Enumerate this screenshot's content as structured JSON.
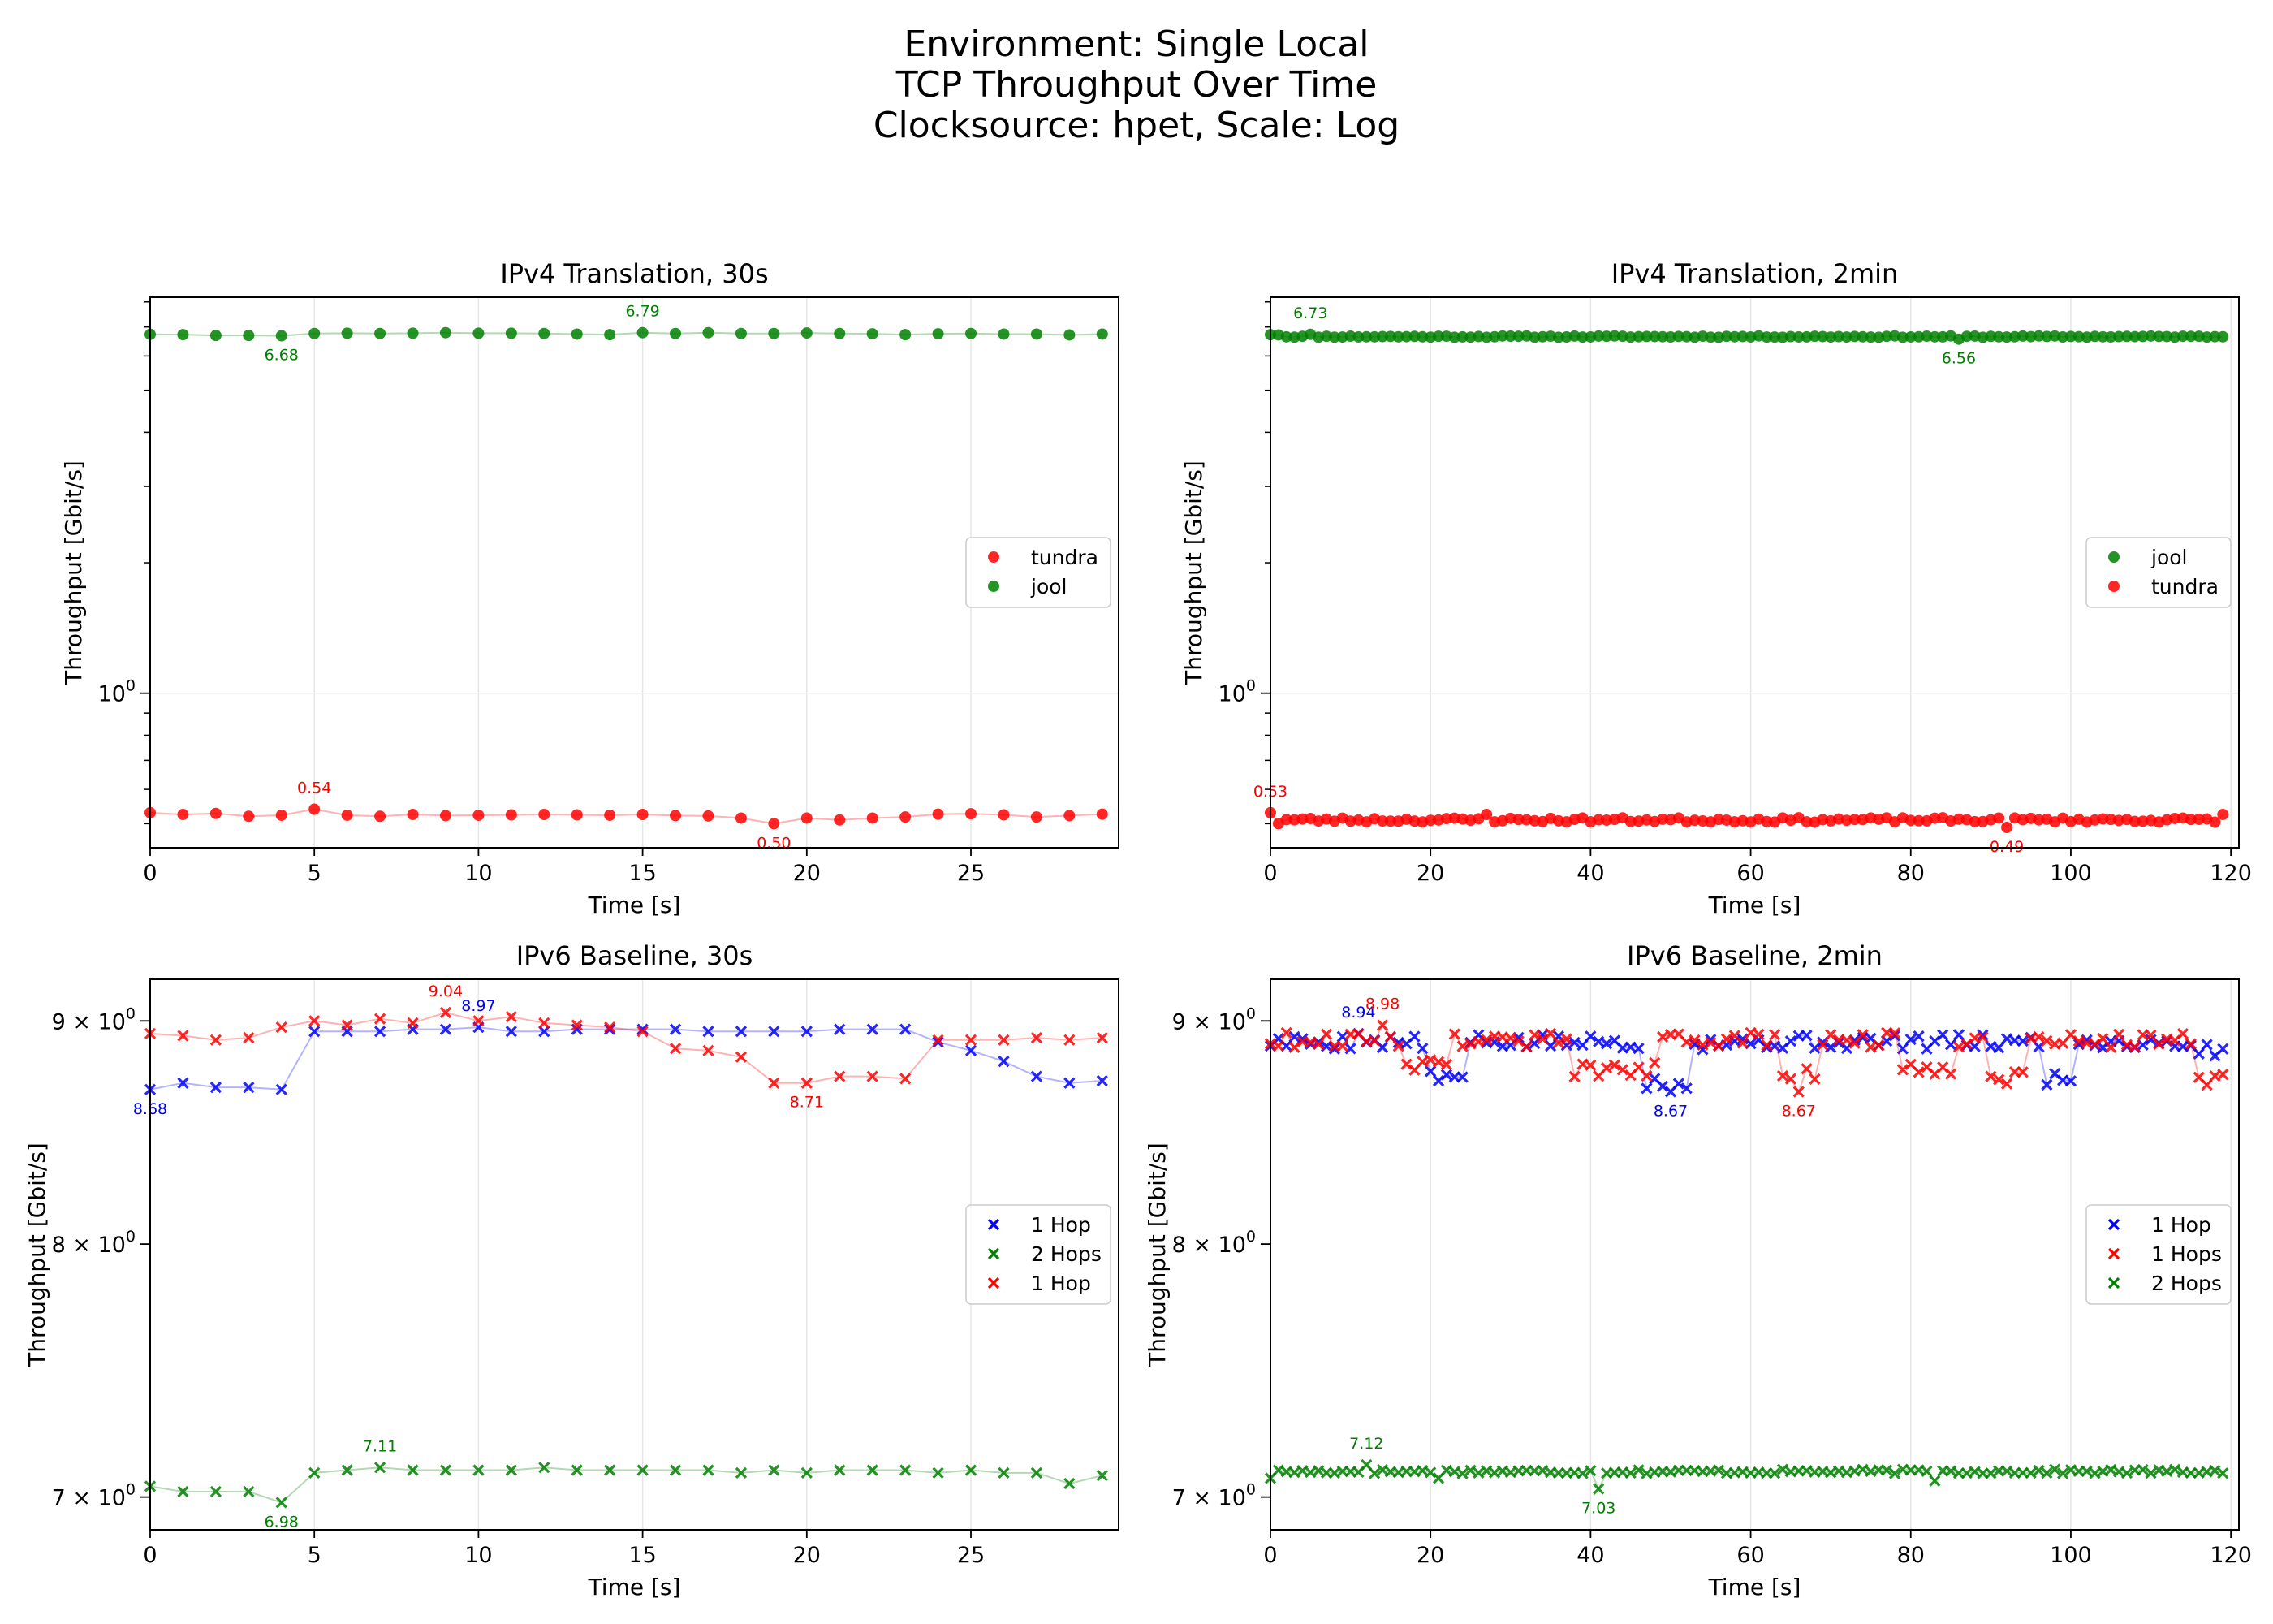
{
  "suptitle": [
    "Environment: Single Local",
    "TCP Throughput Over Time",
    "Clocksource: hpet, Scale: Log"
  ],
  "colors": {
    "tundra": "#ff0000",
    "jool": "#008000",
    "hop1_blue": "#0000ff",
    "hop1_red": "#ff0000",
    "hops2": "#008000"
  },
  "chart_data": [
    {
      "type": "scatter",
      "title": "IPv4 Translation, 30s",
      "xlabel": "Time [s]",
      "ylabel": "Throughput [Gbit/s]",
      "yscale": "log",
      "marker": "o",
      "xlim": [
        0,
        29.5
      ],
      "ylim": [
        0.44,
        8.2
      ],
      "xticks": [
        0,
        5,
        10,
        15,
        20,
        25
      ],
      "yticks": [
        {
          "value": 1,
          "label": "10^0"
        }
      ],
      "grid": "vertical + major y",
      "legend": "center-right",
      "series": [
        {
          "name": "tundra",
          "color": "#ff0000",
          "x": [
            0,
            1,
            2,
            3,
            4,
            5,
            6,
            7,
            8,
            9,
            10,
            11,
            12,
            13,
            14,
            15,
            16,
            17,
            18,
            19,
            20,
            21,
            22,
            23,
            24,
            25,
            26,
            27,
            28,
            29
          ],
          "values": [
            0.53,
            0.525,
            0.528,
            0.52,
            0.523,
            0.54,
            0.523,
            0.52,
            0.525,
            0.522,
            0.523,
            0.524,
            0.525,
            0.524,
            0.523,
            0.525,
            0.522,
            0.521,
            0.515,
            0.5,
            0.515,
            0.51,
            0.515,
            0.518,
            0.526,
            0.527,
            0.524,
            0.518,
            0.522,
            0.526
          ]
        },
        {
          "name": "jool",
          "color": "#008000",
          "x": [
            0,
            1,
            2,
            3,
            4,
            5,
            6,
            7,
            8,
            9,
            10,
            11,
            12,
            13,
            14,
            15,
            16,
            17,
            18,
            19,
            20,
            21,
            22,
            23,
            24,
            25,
            26,
            27,
            28,
            29
          ],
          "values": [
            6.73,
            6.72,
            6.69,
            6.69,
            6.68,
            6.76,
            6.77,
            6.76,
            6.77,
            6.79,
            6.77,
            6.77,
            6.76,
            6.74,
            6.72,
            6.79,
            6.76,
            6.79,
            6.76,
            6.76,
            6.78,
            6.76,
            6.75,
            6.72,
            6.75,
            6.76,
            6.74,
            6.74,
            6.71,
            6.74
          ]
        }
      ],
      "annotations": [
        {
          "x": 4,
          "y": 6.68,
          "text": "6.68",
          "pos": "below",
          "color": "#008000"
        },
        {
          "x": 15,
          "y": 6.79,
          "text": "6.79",
          "pos": "above",
          "color": "#008000"
        },
        {
          "x": 5,
          "y": 0.54,
          "text": "0.54",
          "pos": "above",
          "color": "#ff0000"
        },
        {
          "x": 19,
          "y": 0.5,
          "text": "0.50",
          "pos": "below",
          "color": "#ff0000"
        }
      ]
    },
    {
      "type": "scatter",
      "title": "IPv4 Translation, 2min",
      "xlabel": "Time [s]",
      "ylabel": "Throughput [Gbit/s]",
      "yscale": "log",
      "marker": "o",
      "xlim": [
        0,
        121
      ],
      "ylim": [
        0.44,
        8.2
      ],
      "xticks": [
        0,
        20,
        40,
        60,
        80,
        100,
        120
      ],
      "yticks": [
        {
          "value": 1,
          "label": "10^0"
        }
      ],
      "grid": "vertical + major y",
      "legend": "center-right",
      "series": [
        {
          "name": "jool",
          "color": "#008000",
          "generator": {
            "count": 120,
            "base": 6.65,
            "noise": 0.025,
            "seed": 11
          },
          "overrides": [
            {
              "x": 0,
              "y": 6.72
            },
            {
              "x": 1,
              "y": 6.71
            },
            {
              "x": 5,
              "y": 6.73
            },
            {
              "x": 86,
              "y": 6.56
            }
          ]
        },
        {
          "name": "tundra",
          "color": "#ff0000",
          "generator": {
            "count": 120,
            "base": 0.51,
            "noise": 0.006,
            "seed": 23
          },
          "overrides": [
            {
              "x": 0,
              "y": 0.53
            },
            {
              "x": 1,
              "y": 0.5
            },
            {
              "x": 27,
              "y": 0.525
            },
            {
              "x": 92,
              "y": 0.49
            },
            {
              "x": 119,
              "y": 0.525
            }
          ]
        }
      ],
      "annotations": [
        {
          "x": 5,
          "y": 6.73,
          "text": "6.73",
          "pos": "above",
          "color": "#008000"
        },
        {
          "x": 86,
          "y": 6.56,
          "text": "6.56",
          "pos": "below",
          "color": "#008000"
        },
        {
          "x": 0,
          "y": 0.53,
          "text": "0.53",
          "pos": "above",
          "color": "#ff0000"
        },
        {
          "x": 92,
          "y": 0.49,
          "text": "0.49",
          "pos": "below",
          "color": "#ff0000"
        }
      ]
    },
    {
      "type": "scatter",
      "title": "IPv6 Baseline, 30s",
      "xlabel": "Time [s]",
      "ylabel": "Throughput [Gbit/s]",
      "yscale": "log",
      "marker": "x",
      "xlim": [
        0,
        29.5
      ],
      "ylim": [
        6.88,
        9.2
      ],
      "xticks": [
        0,
        5,
        10,
        15,
        20,
        25
      ],
      "yticks": [
        {
          "value": 9,
          "label": "9 × 10^0"
        },
        {
          "value": 8,
          "label": "8 × 10^0"
        },
        {
          "value": 7,
          "label": "7 × 10^0"
        }
      ],
      "grid": "vertical",
      "legend": "center-right",
      "series": [
        {
          "name": "1 Hop",
          "color": "#0000ff",
          "x": [
            0,
            1,
            2,
            3,
            4,
            5,
            6,
            7,
            8,
            9,
            10,
            11,
            12,
            13,
            14,
            15,
            16,
            17,
            18,
            19,
            20,
            21,
            22,
            23,
            24,
            25,
            26,
            27,
            28,
            29
          ],
          "values": [
            8.68,
            8.71,
            8.69,
            8.69,
            8.68,
            8.95,
            8.95,
            8.95,
            8.96,
            8.96,
            8.97,
            8.95,
            8.95,
            8.96,
            8.96,
            8.96,
            8.96,
            8.95,
            8.95,
            8.95,
            8.95,
            8.96,
            8.96,
            8.96,
            8.9,
            8.86,
            8.81,
            8.74,
            8.71,
            8.72
          ]
        },
        {
          "name": "2 Hops",
          "color": "#008000",
          "x": [
            0,
            1,
            2,
            3,
            4,
            5,
            6,
            7,
            8,
            9,
            10,
            11,
            12,
            13,
            14,
            15,
            16,
            17,
            18,
            19,
            20,
            21,
            22,
            23,
            24,
            25,
            26,
            27,
            28,
            29
          ],
          "values": [
            7.04,
            7.02,
            7.02,
            7.02,
            6.98,
            7.09,
            7.1,
            7.11,
            7.1,
            7.1,
            7.1,
            7.1,
            7.11,
            7.1,
            7.1,
            7.1,
            7.1,
            7.1,
            7.09,
            7.1,
            7.09,
            7.1,
            7.1,
            7.1,
            7.09,
            7.1,
            7.09,
            7.09,
            7.05,
            7.08
          ]
        },
        {
          "name": "1 Hop",
          "color": "#ff0000",
          "x": [
            0,
            1,
            2,
            3,
            4,
            5,
            6,
            7,
            8,
            9,
            10,
            11,
            12,
            13,
            14,
            15,
            16,
            17,
            18,
            19,
            20,
            21,
            22,
            23,
            24,
            25,
            26,
            27,
            28,
            29
          ],
          "values": [
            8.94,
            8.93,
            8.91,
            8.92,
            8.97,
            9.0,
            8.98,
            9.01,
            8.99,
            9.04,
            9.0,
            9.02,
            8.99,
            8.98,
            8.97,
            8.95,
            8.87,
            8.86,
            8.83,
            8.71,
            8.71,
            8.74,
            8.74,
            8.73,
            8.91,
            8.91,
            8.91,
            8.92,
            8.91,
            8.92
          ]
        }
      ],
      "annotations": [
        {
          "x": 0,
          "y": 8.68,
          "text": "8.68",
          "pos": "below",
          "color": "#0000ff"
        },
        {
          "x": 10,
          "y": 8.97,
          "text": "8.97",
          "pos": "above",
          "color": "#0000ff"
        },
        {
          "x": 9,
          "y": 9.04,
          "text": "9.04",
          "pos": "above",
          "color": "#ff0000"
        },
        {
          "x": 20,
          "y": 8.71,
          "text": "8.71",
          "pos": "below",
          "color": "#ff0000"
        },
        {
          "x": 4,
          "y": 6.98,
          "text": "6.98",
          "pos": "below",
          "color": "#008000"
        },
        {
          "x": 7,
          "y": 7.11,
          "text": "7.11",
          "pos": "above",
          "color": "#008000"
        }
      ]
    },
    {
      "type": "scatter",
      "title": "IPv6 Baseline, 2min",
      "xlabel": "Time [s]",
      "ylabel": "Throughput [Gbit/s]",
      "yscale": "log",
      "marker": "x",
      "xlim": [
        0,
        121
      ],
      "ylim": [
        6.88,
        9.2
      ],
      "xticks": [
        0,
        20,
        40,
        60,
        80,
        100,
        120
      ],
      "yticks": [
        {
          "value": 9,
          "label": "9 × 10^0"
        },
        {
          "value": 8,
          "label": "8 × 10^0"
        },
        {
          "value": 7,
          "label": "7 × 10^0"
        }
      ],
      "grid": "vertical",
      "legend": "center-right",
      "series": [
        {
          "name": "1 Hop",
          "color": "#0000ff",
          "generator": {
            "count": 120,
            "base": 8.9,
            "noise": 0.035,
            "dips": [
              [
                20,
                24,
                8.73
              ],
              [
                47,
                52,
                8.71
              ],
              [
                97,
                100,
                8.73
              ],
              [
                116,
                119,
                8.86
              ]
            ],
            "seed": 5
          },
          "overrides": [
            {
              "x": 11,
              "y": 8.94
            },
            {
              "x": 50,
              "y": 8.67
            }
          ]
        },
        {
          "name": "1 Hops",
          "color": "#ff0000",
          "generator": {
            "count": 120,
            "base": 8.91,
            "noise": 0.035,
            "dips": [
              [
                17,
                22,
                8.8
              ],
              [
                38,
                48,
                8.77
              ],
              [
                64,
                68,
                8.75
              ],
              [
                79,
                85,
                8.78
              ],
              [
                90,
                94,
                8.74
              ],
              [
                116,
                119,
                8.73
              ]
            ],
            "seed": 9
          },
          "overrides": [
            {
              "x": 14,
              "y": 8.98
            },
            {
              "x": 66,
              "y": 8.67
            }
          ]
        },
        {
          "name": "2 Hops",
          "color": "#008000",
          "generator": {
            "count": 120,
            "base": 7.095,
            "noise": 0.008,
            "seed": 17
          },
          "overrides": [
            {
              "x": 0,
              "y": 7.07
            },
            {
              "x": 12,
              "y": 7.12
            },
            {
              "x": 21,
              "y": 7.07
            },
            {
              "x": 41,
              "y": 7.03
            },
            {
              "x": 83,
              "y": 7.06
            }
          ]
        }
      ],
      "annotations": [
        {
          "x": 11,
          "y": 8.94,
          "text": "8.94",
          "pos": "above",
          "color": "#0000ff"
        },
        {
          "x": 50,
          "y": 8.67,
          "text": "8.67",
          "pos": "below",
          "color": "#0000ff"
        },
        {
          "x": 14,
          "y": 8.98,
          "text": "8.98",
          "pos": "above",
          "color": "#ff0000"
        },
        {
          "x": 66,
          "y": 8.67,
          "text": "8.67",
          "pos": "below",
          "color": "#ff0000"
        },
        {
          "x": 12,
          "y": 7.12,
          "text": "7.12",
          "pos": "above",
          "color": "#008000"
        },
        {
          "x": 41,
          "y": 7.03,
          "text": "7.03",
          "pos": "below",
          "color": "#008000"
        }
      ]
    }
  ]
}
